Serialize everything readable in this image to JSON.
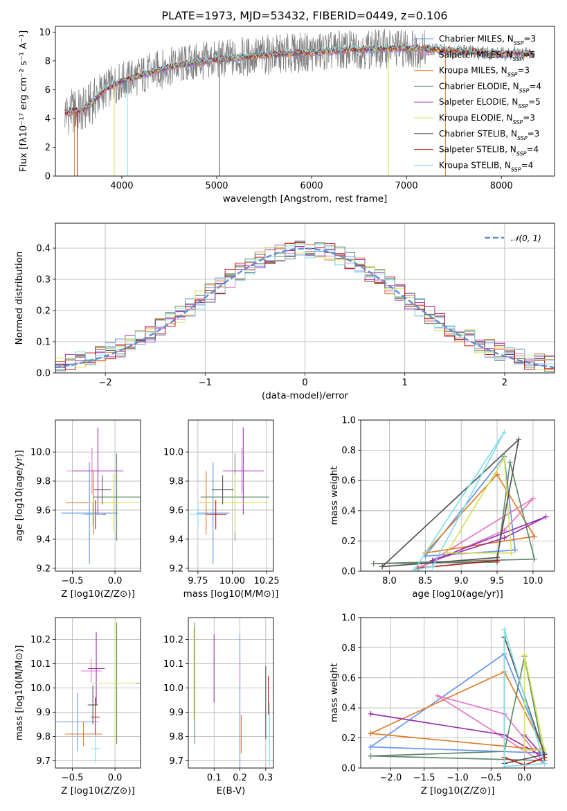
{
  "figure_title": "PLATE=1973, MJD=53432, FIBERID=0449, z=0.106",
  "chart_data": [
    {
      "id": "spectrum",
      "type": "line",
      "title": "PLATE=1973, MJD=53432, FIBERID=0449, z=0.106",
      "xlabel": "wavelength [Angstrom, rest frame]",
      "ylabel": "Flux [fλ10⁻¹⁷ erg cm⁻² s⁻¹ A⁻¹]",
      "xlim": [
        3300,
        8560
      ],
      "ylim": [
        0,
        10.4
      ],
      "xticks": [
        4000,
        5000,
        6000,
        7000,
        8000
      ],
      "yticks": [
        0,
        2,
        4,
        6,
        8,
        10
      ],
      "legend_position": "top-right",
      "legend": [
        {
          "label": "Chabrier MILES, N_SSP=3",
          "color": "#6495ed"
        },
        {
          "label": "Salpeter MILES, N_SSP=5",
          "color": "#e377c2"
        },
        {
          "label": "Kroupa MILES, N_SSP=3",
          "color": "#e07b28"
        },
        {
          "label": "Chabrier ELODIE, N_SSP=4",
          "color": "#5f8a6b"
        },
        {
          "label": "Salpeter ELODIE, N_SSP=5",
          "color": "#9b2fae"
        },
        {
          "label": "Kroupa ELODIE, N_SSP=3",
          "color": "#d4e157"
        },
        {
          "label": "Chabrier STELIB, N_SSP=3",
          "color": "#555555"
        },
        {
          "label": "Salpeter STELIB, N_SSP=4",
          "color": "#b71c1c"
        },
        {
          "label": "Kroupa STELIB, N_SSP=4",
          "color": "#80deea"
        }
      ],
      "data_color": "#808080",
      "continuum_points": [
        [
          3400,
          4.4
        ],
        [
          3600,
          4.6
        ],
        [
          3700,
          5.2
        ],
        [
          3800,
          5.9
        ],
        [
          3900,
          6.3
        ],
        [
          4000,
          6.6
        ],
        [
          4200,
          7.0
        ],
        [
          4400,
          7.4
        ],
        [
          4600,
          7.7
        ],
        [
          4800,
          7.9
        ],
        [
          5000,
          8.1
        ],
        [
          5200,
          8.2
        ],
        [
          5500,
          8.4
        ],
        [
          6000,
          8.6
        ],
        [
          6500,
          8.8
        ],
        [
          7000,
          8.9
        ],
        [
          7500,
          8.7
        ],
        [
          8000,
          8.5
        ],
        [
          8350,
          8.5
        ]
      ],
      "spike_wavelengths": [
        3500,
        3530,
        3920,
        4060,
        5030,
        6810,
        7410
      ]
    },
    {
      "id": "residual_histogram",
      "type": "line",
      "xlabel": "(data-model)/error",
      "ylabel": "Normed distribution",
      "xlim": [
        -2.5,
        2.5
      ],
      "ylim": [
        0,
        0.48
      ],
      "xticks": [
        -2,
        -1,
        0,
        1,
        2
      ],
      "yticks": [
        0.0,
        0.1,
        0.2,
        0.3,
        0.4
      ],
      "legend_position": "top-right",
      "reference_curve": {
        "label": "N(0,1)",
        "label_math": "𝒩(0, 1)",
        "color": "#5b8bd5",
        "style": "dashed"
      },
      "bin_width": 0.1,
      "approx_bin_centers": [
        -2.45,
        -2.35,
        -2.25,
        -2.15,
        -2.05,
        -1.95,
        -1.85,
        -1.75,
        -1.65,
        -1.55,
        -1.45,
        -1.35,
        -1.25,
        -1.15,
        -1.05,
        -0.95,
        -0.85,
        -0.75,
        -0.65,
        -0.55,
        -0.45,
        -0.35,
        -0.25,
        -0.15,
        -0.05,
        0.05,
        0.15,
        0.25,
        0.35,
        0.45,
        0.55,
        0.65,
        0.75,
        0.85,
        0.95,
        1.05,
        1.15,
        1.25,
        1.35,
        1.45,
        1.55,
        1.65,
        1.75,
        1.85,
        1.95,
        2.05,
        2.15,
        2.25,
        2.35,
        2.45
      ]
    },
    {
      "id": "age_vs_Z",
      "type": "scatter",
      "xlabel": "Z [log10(Z/Z⊙)]",
      "ylabel": "age [log10(age/yr)]",
      "xlim": [
        -0.7,
        0.3
      ],
      "ylim": [
        9.18,
        10.22
      ],
      "xticks": [
        -0.5,
        0.0
      ],
      "yticks": [
        9.2,
        9.4,
        9.6,
        9.8,
        10.0
      ],
      "points": [
        {
          "x": -0.3,
          "y": 9.58,
          "xerr": 0.33,
          "yerr": 0.35,
          "color": "#6495ed"
        },
        {
          "x": -0.27,
          "y": 9.87,
          "xerr": 0.3,
          "yerr": 0.16,
          "color": "#e377c2"
        },
        {
          "x": -0.25,
          "y": 9.65,
          "xerr": 0.33,
          "yerr": 0.22,
          "color": "#e07b28"
        },
        {
          "x": 0.02,
          "y": 9.69,
          "xerr": 0.28,
          "yerr": 0.3,
          "color": "#5f8a6b"
        },
        {
          "x": -0.2,
          "y": 9.87,
          "xerr": 0.3,
          "yerr": 0.3,
          "color": "#9b2fae"
        },
        {
          "x": -0.02,
          "y": 9.65,
          "xerr": 0.3,
          "yerr": 0.2,
          "color": "#d4e157"
        },
        {
          "x": -0.15,
          "y": 9.74,
          "xerr": 0.1,
          "yerr": 0.1,
          "color": "#555555"
        },
        {
          "x": -0.23,
          "y": 9.57,
          "xerr": 0.12,
          "yerr": 0.1,
          "color": "#b71c1c"
        },
        {
          "x": -0.26,
          "y": 9.57,
          "xerr": 0.12,
          "yerr": 0.08,
          "color": "#80deea"
        }
      ]
    },
    {
      "id": "age_vs_mass",
      "type": "scatter",
      "xlabel": "mass [log10(M/M⊙)]",
      "ylabel": "",
      "xlim": [
        9.68,
        10.3
      ],
      "ylim": [
        9.18,
        10.22
      ],
      "xticks": [
        9.75,
        10.0,
        10.25
      ],
      "yticks": [
        9.2,
        9.4,
        9.6,
        9.8,
        10.0
      ],
      "points": [
        {
          "x": 9.86,
          "y": 9.58,
          "xerr": 0.12,
          "yerr": 0.35,
          "color": "#6495ed"
        },
        {
          "x": 10.07,
          "y": 9.87,
          "xerr": 0.05,
          "yerr": 0.16,
          "color": "#e377c2"
        },
        {
          "x": 9.81,
          "y": 9.65,
          "xerr": 0.05,
          "yerr": 0.22,
          "color": "#e07b28"
        },
        {
          "x": 10.02,
          "y": 9.69,
          "xerr": 0.25,
          "yerr": 0.3,
          "color": "#5f8a6b"
        },
        {
          "x": 10.08,
          "y": 9.87,
          "xerr": 0.15,
          "yerr": 0.3,
          "color": "#9b2fae"
        },
        {
          "x": 10.02,
          "y": 9.65,
          "xerr": 0.25,
          "yerr": 0.2,
          "color": "#d4e157"
        },
        {
          "x": 9.93,
          "y": 9.74,
          "xerr": 0.08,
          "yerr": 0.1,
          "color": "#555555"
        },
        {
          "x": 9.88,
          "y": 9.57,
          "xerr": 0.08,
          "yerr": 0.1,
          "color": "#b71c1c"
        },
        {
          "x": 9.75,
          "y": 9.57,
          "xerr": 0.06,
          "yerr": 0.08,
          "color": "#80deea"
        }
      ]
    },
    {
      "id": "massweight_vs_age",
      "type": "line",
      "xlabel": "age [log10(age/yr)]",
      "ylabel": "mass weight",
      "xlim": [
        7.6,
        10.3
      ],
      "ylim": [
        0,
        1.0
      ],
      "xticks": [
        8.0,
        8.5,
        9.0,
        9.5,
        10.0
      ],
      "yticks": [
        0.0,
        0.2,
        0.4,
        0.6,
        0.8,
        1.0
      ],
      "series": [
        {
          "color": "#6495ed",
          "x": [
            9.75,
            9.6,
            8.5,
            9.75
          ],
          "y": [
            0.14,
            0.76,
            0.1,
            0.14
          ]
        },
        {
          "color": "#e377c2",
          "x": [
            8.45,
            9.6,
            10.0,
            8.45
          ],
          "y": [
            0.03,
            0.27,
            0.48,
            0.03
          ]
        },
        {
          "color": "#e07b28",
          "x": [
            10.02,
            9.5,
            8.5,
            10.02
          ],
          "y": [
            0.23,
            0.64,
            0.12,
            0.23
          ]
        },
        {
          "color": "#5f8a6b",
          "x": [
            7.78,
            9.5,
            9.68,
            10.02,
            7.78
          ],
          "y": [
            0.05,
            0.06,
            0.72,
            0.08,
            0.05
          ]
        },
        {
          "color": "#9b2fae",
          "x": [
            8.6,
            9.6,
            10.18,
            8.6
          ],
          "y": [
            0.07,
            0.22,
            0.36,
            0.07
          ]
        },
        {
          "color": "#d4e157",
          "x": [
            9.7,
            9.6,
            8.8,
            9.7
          ],
          "y": [
            0.12,
            0.75,
            0.12,
            0.12
          ]
        },
        {
          "color": "#555555",
          "x": [
            7.9,
            9.5,
            9.8,
            7.9
          ],
          "y": [
            0.03,
            0.09,
            0.87,
            0.03
          ]
        },
        {
          "color": "#b71c1c",
          "x": [
            8.4,
            9.5
          ],
          "y": [
            0.02,
            0.07
          ]
        },
        {
          "color": "#80deea",
          "x": [
            8.35,
            9.6,
            8.6,
            8.35
          ],
          "y": [
            0.01,
            0.92,
            0.03,
            0.01
          ]
        }
      ]
    },
    {
      "id": "mass_vs_Z",
      "type": "scatter",
      "xlabel": "Z [log10(Z/Z⊙)]",
      "ylabel": "mass [log10(M/M⊙)]",
      "xlim": [
        -0.7,
        0.3
      ],
      "ylim": [
        9.67,
        10.29
      ],
      "xticks": [
        -0.5,
        0.0
      ],
      "yticks": [
        9.7,
        9.8,
        9.9,
        10.0,
        10.1,
        10.2
      ],
      "points": [
        {
          "x": -0.44,
          "y": 9.86,
          "xerr": 0.25,
          "yerr": 0.12,
          "color": "#6495ed"
        },
        {
          "x": -0.28,
          "y": 10.07,
          "xerr": 0.12,
          "yerr": 0.05,
          "color": "#e377c2"
        },
        {
          "x": -0.37,
          "y": 9.81,
          "xerr": 0.22,
          "yerr": 0.05,
          "color": "#e07b28"
        },
        {
          "x": 0.02,
          "y": 10.02,
          "xerr": 0.28,
          "yerr": 0.25,
          "color": "#5f8a6b"
        },
        {
          "x": -0.22,
          "y": 10.08,
          "xerr": 0.1,
          "yerr": 0.15,
          "color": "#9b2fae"
        },
        {
          "x": 0.0,
          "y": 10.02,
          "xerr": 0.25,
          "yerr": 0.25,
          "color": "#d4e157"
        },
        {
          "x": -0.26,
          "y": 9.93,
          "xerr": 0.06,
          "yerr": 0.08,
          "color": "#555555"
        },
        {
          "x": -0.23,
          "y": 9.88,
          "xerr": 0.05,
          "yerr": 0.08,
          "color": "#b71c1c"
        },
        {
          "x": -0.23,
          "y": 9.75,
          "xerr": 0.05,
          "yerr": 0.06,
          "color": "#80deea"
        }
      ]
    },
    {
      "id": "mass_vs_ebv",
      "type": "scatter",
      "xlabel": "E(B-V)",
      "ylabel": "",
      "xlim": [
        0.0,
        0.33
      ],
      "ylim": [
        9.67,
        10.29
      ],
      "xticks": [
        0.1,
        0.2,
        0.3
      ],
      "yticks": [
        9.7,
        9.8,
        9.9,
        10.0,
        10.1,
        10.2
      ],
      "points": [
        {
          "x": 0.2,
          "y": 9.86,
          "yerr": 0.36,
          "color": "#6495ed"
        },
        {
          "x": 0.2,
          "y": 10.07,
          "yerr": 0.05,
          "color": "#e377c2"
        },
        {
          "x": 0.205,
          "y": 9.81,
          "yerr": 0.08,
          "color": "#e07b28"
        },
        {
          "x": 0.025,
          "y": 10.02,
          "yerr": 0.25,
          "color": "#5f8a6b"
        },
        {
          "x": 0.1,
          "y": 10.08,
          "yerr": 0.14,
          "color": "#9b2fae"
        },
        {
          "x": 0.022,
          "y": 10.06,
          "yerr": 0.19,
          "color": "#d4e157"
        },
        {
          "x": 0.3,
          "y": 9.94,
          "yerr": 0.15,
          "color": "#555555"
        },
        {
          "x": 0.31,
          "y": 9.97,
          "yerr": 0.08,
          "color": "#b71c1c"
        },
        {
          "x": 0.315,
          "y": 9.81,
          "yerr": 0.13,
          "color": "#80deea"
        }
      ]
    },
    {
      "id": "massweight_vs_Z",
      "type": "line",
      "xlabel": "Z [log10(Z/Z⊙)]",
      "ylabel": "mass weight",
      "xlim": [
        -2.45,
        0.45
      ],
      "ylim": [
        0,
        1.0
      ],
      "xticks": [
        -2.0,
        -1.5,
        -1.0,
        -0.5,
        0.0
      ],
      "yticks": [
        0.0,
        0.2,
        0.4,
        0.6,
        0.8,
        1.0
      ],
      "series": [
        {
          "color": "#6495ed",
          "x": [
            -2.3,
            -0.3,
            0.3,
            -2.3
          ],
          "y": [
            0.14,
            0.76,
            0.1,
            0.14
          ]
        },
        {
          "color": "#e377c2",
          "x": [
            -1.3,
            -0.3,
            0.3,
            -1.3
          ],
          "y": [
            0.48,
            0.36,
            0.03,
            0.48
          ]
        },
        {
          "color": "#e07b28",
          "x": [
            -2.3,
            -0.3,
            0.3,
            -2.3
          ],
          "y": [
            0.23,
            0.64,
            0.12,
            0.23
          ]
        },
        {
          "color": "#5f8a6b",
          "x": [
            -2.3,
            -0.3,
            0.0,
            0.3,
            -2.3
          ],
          "y": [
            0.08,
            0.11,
            0.74,
            0.05,
            0.08
          ]
        },
        {
          "color": "#9b2fae",
          "x": [
            -2.3,
            -0.3,
            0.3,
            0.0
          ],
          "y": [
            0.36,
            0.22,
            0.07,
            0.22
          ]
        },
        {
          "color": "#d4e157",
          "x": [
            0.0,
            0.0,
            0.3,
            0.0
          ],
          "y": [
            0.75,
            0.12,
            0.12,
            0.75
          ]
        },
        {
          "color": "#555555",
          "x": [
            -0.3,
            -0.3,
            0.3,
            -0.3
          ],
          "y": [
            0.87,
            0.03,
            0.09,
            0.87
          ]
        },
        {
          "color": "#b71c1c",
          "x": [
            -0.3,
            0.0,
            0.3
          ],
          "y": [
            0.07,
            0.02,
            0.07
          ]
        },
        {
          "color": "#80deea",
          "x": [
            -0.3,
            -0.3,
            0.3,
            -0.3
          ],
          "y": [
            0.92,
            0.01,
            0.03,
            0.92
          ]
        }
      ]
    }
  ]
}
